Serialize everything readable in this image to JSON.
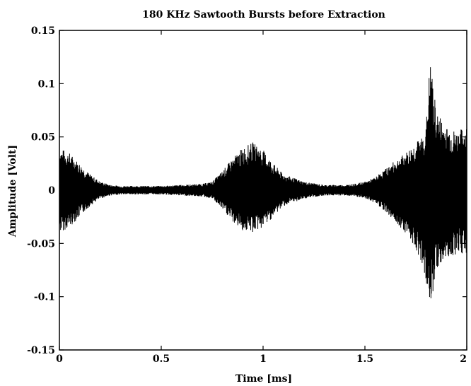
{
  "chart_data": {
    "type": "line",
    "title": "180 KHz Sawtooth Bursts before Extraction",
    "xlabel": "Time [ms]",
    "ylabel": "Amplitude [Volt]",
    "xlim": [
      0,
      2
    ],
    "ylim": [
      -0.15,
      0.15
    ],
    "x_ticks": [
      "0",
      "0.5",
      "1",
      "1.5",
      "2"
    ],
    "y_ticks": [
      "0.15",
      "0.1",
      "0.05",
      "0",
      "-0.05",
      "-0.1",
      "-0.15"
    ],
    "grid": false,
    "series": [
      {
        "color": "#000000",
        "envelope": {
          "x": [
            0,
            0.05,
            0.1,
            0.15,
            0.2,
            0.25,
            0.3,
            0.4,
            0.5,
            0.6,
            0.7,
            0.75,
            0.8,
            0.85,
            0.9,
            0.95,
            1.0,
            1.05,
            1.1,
            1.2,
            1.3,
            1.4,
            1.45,
            1.5,
            1.55,
            1.6,
            1.65,
            1.7,
            1.75,
            1.78,
            1.8,
            1.82,
            1.85,
            1.9,
            1.95,
            2.0
          ],
          "upper": [
            0.04,
            0.035,
            0.025,
            0.015,
            0.008,
            0.005,
            0.004,
            0.004,
            0.004,
            0.005,
            0.006,
            0.008,
            0.018,
            0.03,
            0.04,
            0.045,
            0.038,
            0.025,
            0.015,
            0.008,
            0.005,
            0.005,
            0.006,
            0.008,
            0.012,
            0.02,
            0.028,
            0.035,
            0.045,
            0.05,
            0.06,
            0.123,
            0.075,
            0.06,
            0.055,
            0.06
          ],
          "lower": [
            -0.04,
            -0.035,
            -0.025,
            -0.015,
            -0.008,
            -0.005,
            -0.004,
            -0.004,
            -0.004,
            -0.005,
            -0.006,
            -0.008,
            -0.018,
            -0.03,
            -0.038,
            -0.04,
            -0.035,
            -0.025,
            -0.015,
            -0.008,
            -0.005,
            -0.005,
            -0.006,
            -0.008,
            -0.012,
            -0.02,
            -0.03,
            -0.04,
            -0.055,
            -0.07,
            -0.085,
            -0.115,
            -0.075,
            -0.065,
            -0.06,
            -0.06
          ]
        }
      }
    ]
  }
}
